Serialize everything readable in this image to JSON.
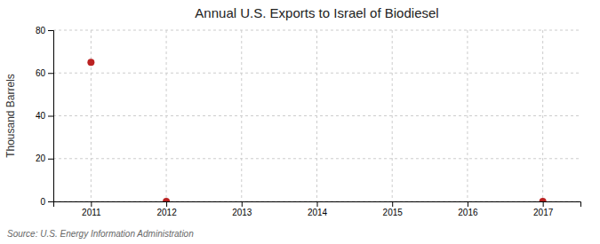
{
  "chart_data": {
    "type": "scatter",
    "title": "Annual U.S. Exports to Israel of Biodiesel",
    "ylabel": "Thousand Barrels",
    "annotations": [
      "Source: U.S. Energy Information Administration"
    ],
    "x": [
      2011,
      2012,
      2017
    ],
    "values": [
      65,
      0,
      0
    ],
    "color": "#bb2222",
    "marker": "circle",
    "xlim": [
      2010.5,
      2017.5
    ],
    "xticks": [
      2011,
      2012,
      2013,
      2014,
      2015,
      2016,
      2017
    ],
    "ylim": [
      0,
      80
    ],
    "yticks": [
      0,
      20,
      40,
      60,
      80
    ],
    "grid": true
  }
}
